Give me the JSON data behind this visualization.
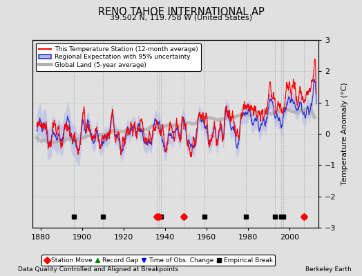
{
  "title": "RENO TAHOE INTERNATIONAL AP",
  "subtitle": "39.502 N, 119.758 W (United States)",
  "ylabel": "Temperature Anomaly (°C)",
  "ylim": [
    -3,
    3
  ],
  "xlim": [
    1876,
    2014
  ],
  "xticks": [
    1880,
    1900,
    1920,
    1940,
    1960,
    1980,
    2000
  ],
  "yticks": [
    -3,
    -2,
    -1,
    0,
    1,
    2,
    3
  ],
  "bg_color": "#e0e0e0",
  "plot_bg_color": "#e0e0e0",
  "empirical_break_years": [
    1896,
    1910,
    1936,
    1937,
    1938,
    1949,
    1959,
    1979,
    1993,
    1996,
    1997,
    2007
  ],
  "station_move_years": [
    1936,
    1937,
    1949,
    2007
  ],
  "footnote_left": "Data Quality Controlled and Aligned at Breakpoints",
  "footnote_right": "Berkeley Earth",
  "legend_line_labels": [
    "This Temperature Station (12-month average)",
    "Regional Expectation with 95% uncertainty",
    "Global Land (5-year average)"
  ],
  "marker_legend_labels": [
    "Station Move",
    "Record Gap",
    "Time of Obs. Change",
    "Empirical Break"
  ]
}
